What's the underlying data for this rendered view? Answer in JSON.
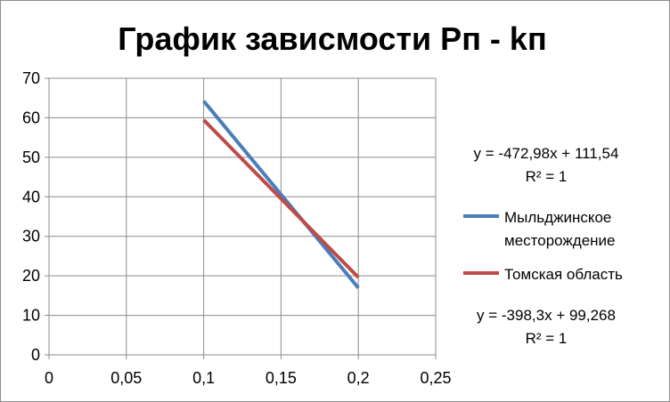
{
  "chart_data": {
    "type": "line",
    "title": "График зависмости Рп - kп",
    "xlabel": "",
    "ylabel": "",
    "xlim": [
      0,
      0.25
    ],
    "ylim": [
      0,
      70
    ],
    "x_ticks": [
      "0",
      "0,05",
      "0,1",
      "0,15",
      "0,2",
      "0,25"
    ],
    "y_ticks": [
      "0",
      "10",
      "20",
      "30",
      "40",
      "50",
      "60",
      "70"
    ],
    "grid": true,
    "legend_position": "right",
    "series": [
      {
        "name": "Мыльджинское месторождение",
        "name_lines": [
          "Мыльджинское",
          "месторождение"
        ],
        "color": "#4a7ebb",
        "x": [
          0.1,
          0.2
        ],
        "y": [
          64.24,
          16.94
        ],
        "trendline": {
          "equation": "y = -472,98x + 111,54",
          "r2": "R² = 1"
        }
      },
      {
        "name": "Томская область",
        "name_lines": [
          "Томская область"
        ],
        "color": "#be4b48",
        "x": [
          0.1,
          0.2
        ],
        "y": [
          59.44,
          19.61
        ],
        "trendline": {
          "equation": "y = -398,3x + 99,268",
          "r2": "R² = 1"
        }
      }
    ]
  }
}
